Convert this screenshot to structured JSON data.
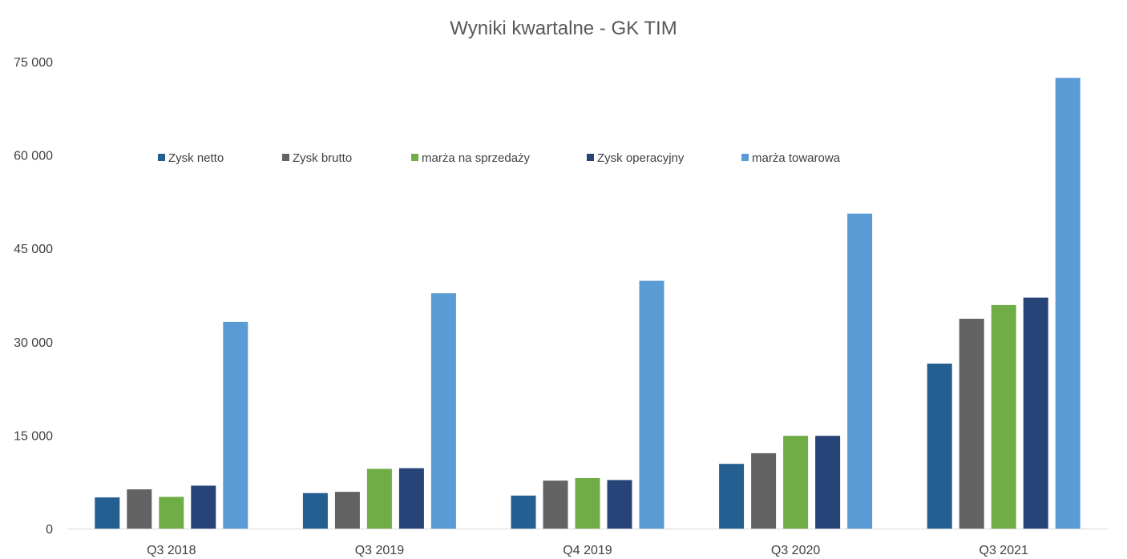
{
  "chart_data": {
    "type": "bar",
    "title": "Wyniki kwartalne - GK TIM",
    "xlabel": "",
    "ylabel": "",
    "categories": [
      "Q3 2018",
      "Q3 2019",
      "Q4 2019",
      "Q3 2020",
      "Q3 2021"
    ],
    "ylim": [
      0,
      75000
    ],
    "yticks": [
      0,
      15000,
      30000,
      45000,
      60000,
      75000
    ],
    "ytick_labels": [
      "0",
      "15 000",
      "30 000",
      "45 000",
      "60 000",
      "75 000"
    ],
    "grid": false,
    "legend_position": "top-inside",
    "series": [
      {
        "name": "Zysk netto",
        "color": "#255E91",
        "values": [
          5000,
          5700,
          5300,
          10400,
          26500
        ]
      },
      {
        "name": "Zysk brutto",
        "color": "#636363",
        "values": [
          6300,
          5900,
          7700,
          12100,
          33700
        ]
      },
      {
        "name": "marża na sprzedaży",
        "color": "#70AD47",
        "values": [
          5100,
          9600,
          8100,
          14900,
          35900
        ]
      },
      {
        "name": "Zysk operacyjny",
        "color": "#264478",
        "values": [
          6900,
          9700,
          7800,
          14900,
          37100
        ]
      },
      {
        "name": "marża towarowa",
        "color": "#5B9BD5",
        "values": [
          33200,
          37800,
          39800,
          50600,
          72400
        ]
      }
    ]
  }
}
